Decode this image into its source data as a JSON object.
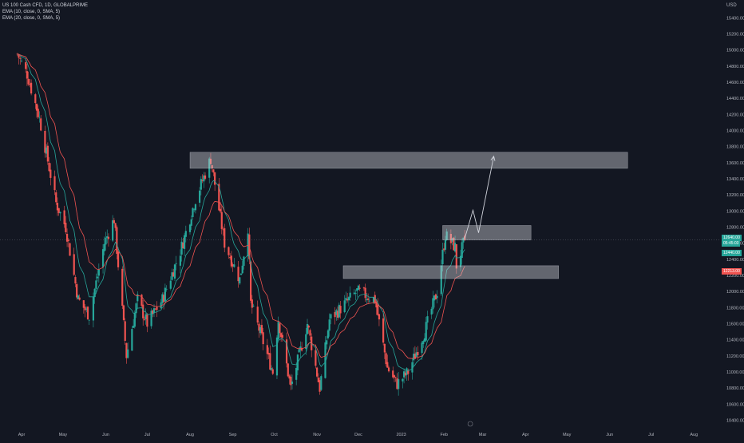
{
  "legend": {
    "symbol": "US 100 Cash CFD, 1D, GLOBALPRIME",
    "ema1": "EMA (10, close, 0, SMA, 5)",
    "ema2": "EMA (20, close, 0, SMA, 5)"
  },
  "currency": "USD",
  "price_labels": {
    "last_a": "12640.00",
    "last_b": "05:45:03",
    "ema10": "12440.00",
    "ema20": "12213.00"
  },
  "colors": {
    "background": "#131722",
    "up": "#26a69a",
    "down": "#ef5350",
    "ema10": "#26a69a",
    "ema20": "#ef5350",
    "zone": "#d1d4dc",
    "projection": "#d1d4dc"
  },
  "chart_data": {
    "type": "candlestick",
    "title": "US 100 Cash CFD, 1D, GLOBALPRIME",
    "y_ticks": [
      10400,
      10600,
      10800,
      11000,
      11200,
      11400,
      11600,
      11800,
      12000,
      12200,
      12400,
      12600,
      12800,
      13000,
      13200,
      13400,
      13600,
      13800,
      14000,
      14200,
      14400,
      14600,
      14800,
      15000,
      15200,
      15400
    ],
    "ylim": [
      10330,
      15470
    ],
    "x_ticks": [
      "Apr",
      "May",
      "Jun",
      "Jul",
      "Aug",
      "Sep",
      "Oct",
      "Nov",
      "Dec",
      "2023",
      "Feb",
      "Mar",
      "Apr",
      "May",
      "Jun",
      "Jul",
      "Aug"
    ],
    "x_tick_dates": [
      "2022-04-01",
      "2022-05-01",
      "2022-06-01",
      "2022-07-01",
      "2022-08-01",
      "2022-09-01",
      "2022-10-01",
      "2022-11-01",
      "2022-12-01",
      "2023-01-01",
      "2023-02-01",
      "2023-03-01",
      "2023-04-01",
      "2023-05-01",
      "2023-06-01",
      "2023-07-01",
      "2023-08-01"
    ],
    "price_anchors": [
      {
        "date": "2022-03-29",
        "close": 14950
      },
      {
        "date": "2022-04-05",
        "close": 14700
      },
      {
        "date": "2022-04-14",
        "close": 14150
      },
      {
        "date": "2022-04-26",
        "close": 13100
      },
      {
        "date": "2022-05-03",
        "close": 12800
      },
      {
        "date": "2022-05-12",
        "close": 11900
      },
      {
        "date": "2022-05-20",
        "close": 11700
      },
      {
        "date": "2022-05-31",
        "close": 12600
      },
      {
        "date": "2022-06-07",
        "close": 12900
      },
      {
        "date": "2022-06-16",
        "close": 11200
      },
      {
        "date": "2022-06-24",
        "close": 11900
      },
      {
        "date": "2022-07-01",
        "close": 11600
      },
      {
        "date": "2022-07-12",
        "close": 11900
      },
      {
        "date": "2022-07-25",
        "close": 12500
      },
      {
        "date": "2022-08-05",
        "close": 13150
      },
      {
        "date": "2022-08-16",
        "close": 13650
      },
      {
        "date": "2022-08-26",
        "close": 12600
      },
      {
        "date": "2022-09-06",
        "close": 12150
      },
      {
        "date": "2022-09-12",
        "close": 12800
      },
      {
        "date": "2022-09-14",
        "close": 11850
      },
      {
        "date": "2022-09-30",
        "close": 11000
      },
      {
        "date": "2022-10-04",
        "close": 11650
      },
      {
        "date": "2022-10-13",
        "close": 10800
      },
      {
        "date": "2022-10-25",
        "close": 11600
      },
      {
        "date": "2022-11-03",
        "close": 10800
      },
      {
        "date": "2022-11-10",
        "close": 11650
      },
      {
        "date": "2022-11-30",
        "close": 12000
      },
      {
        "date": "2022-12-13",
        "close": 11900
      },
      {
        "date": "2022-12-22",
        "close": 11050
      },
      {
        "date": "2022-12-29",
        "close": 10850
      },
      {
        "date": "2023-01-06",
        "close": 11000
      },
      {
        "date": "2023-01-18",
        "close": 11500
      },
      {
        "date": "2023-01-27",
        "close": 12000
      },
      {
        "date": "2023-02-02",
        "close": 12700
      },
      {
        "date": "2023-02-09",
        "close": 12550
      },
      {
        "date": "2023-02-10",
        "close": 12320
      },
      {
        "date": "2023-02-16",
        "close": 12640
      }
    ],
    "zones": [
      {
        "from": "2022-08-01",
        "to": "2023-06-14",
        "low": 13530,
        "high": 13730
      },
      {
        "from": "2023-01-31",
        "to": "2023-04-05",
        "low": 12640,
        "high": 12820
      },
      {
        "from": "2022-11-20",
        "to": "2023-04-25",
        "low": 12160,
        "high": 12320
      }
    ],
    "projection": [
      {
        "date": "2023-02-16",
        "value": 12660
      },
      {
        "date": "2023-02-22",
        "value": 13010
      },
      {
        "date": "2023-02-26",
        "value": 12730
      },
      {
        "date": "2023-03-09",
        "value": 13680
      }
    ],
    "indicators": [
      "EMA 10",
      "EMA 20"
    ]
  }
}
